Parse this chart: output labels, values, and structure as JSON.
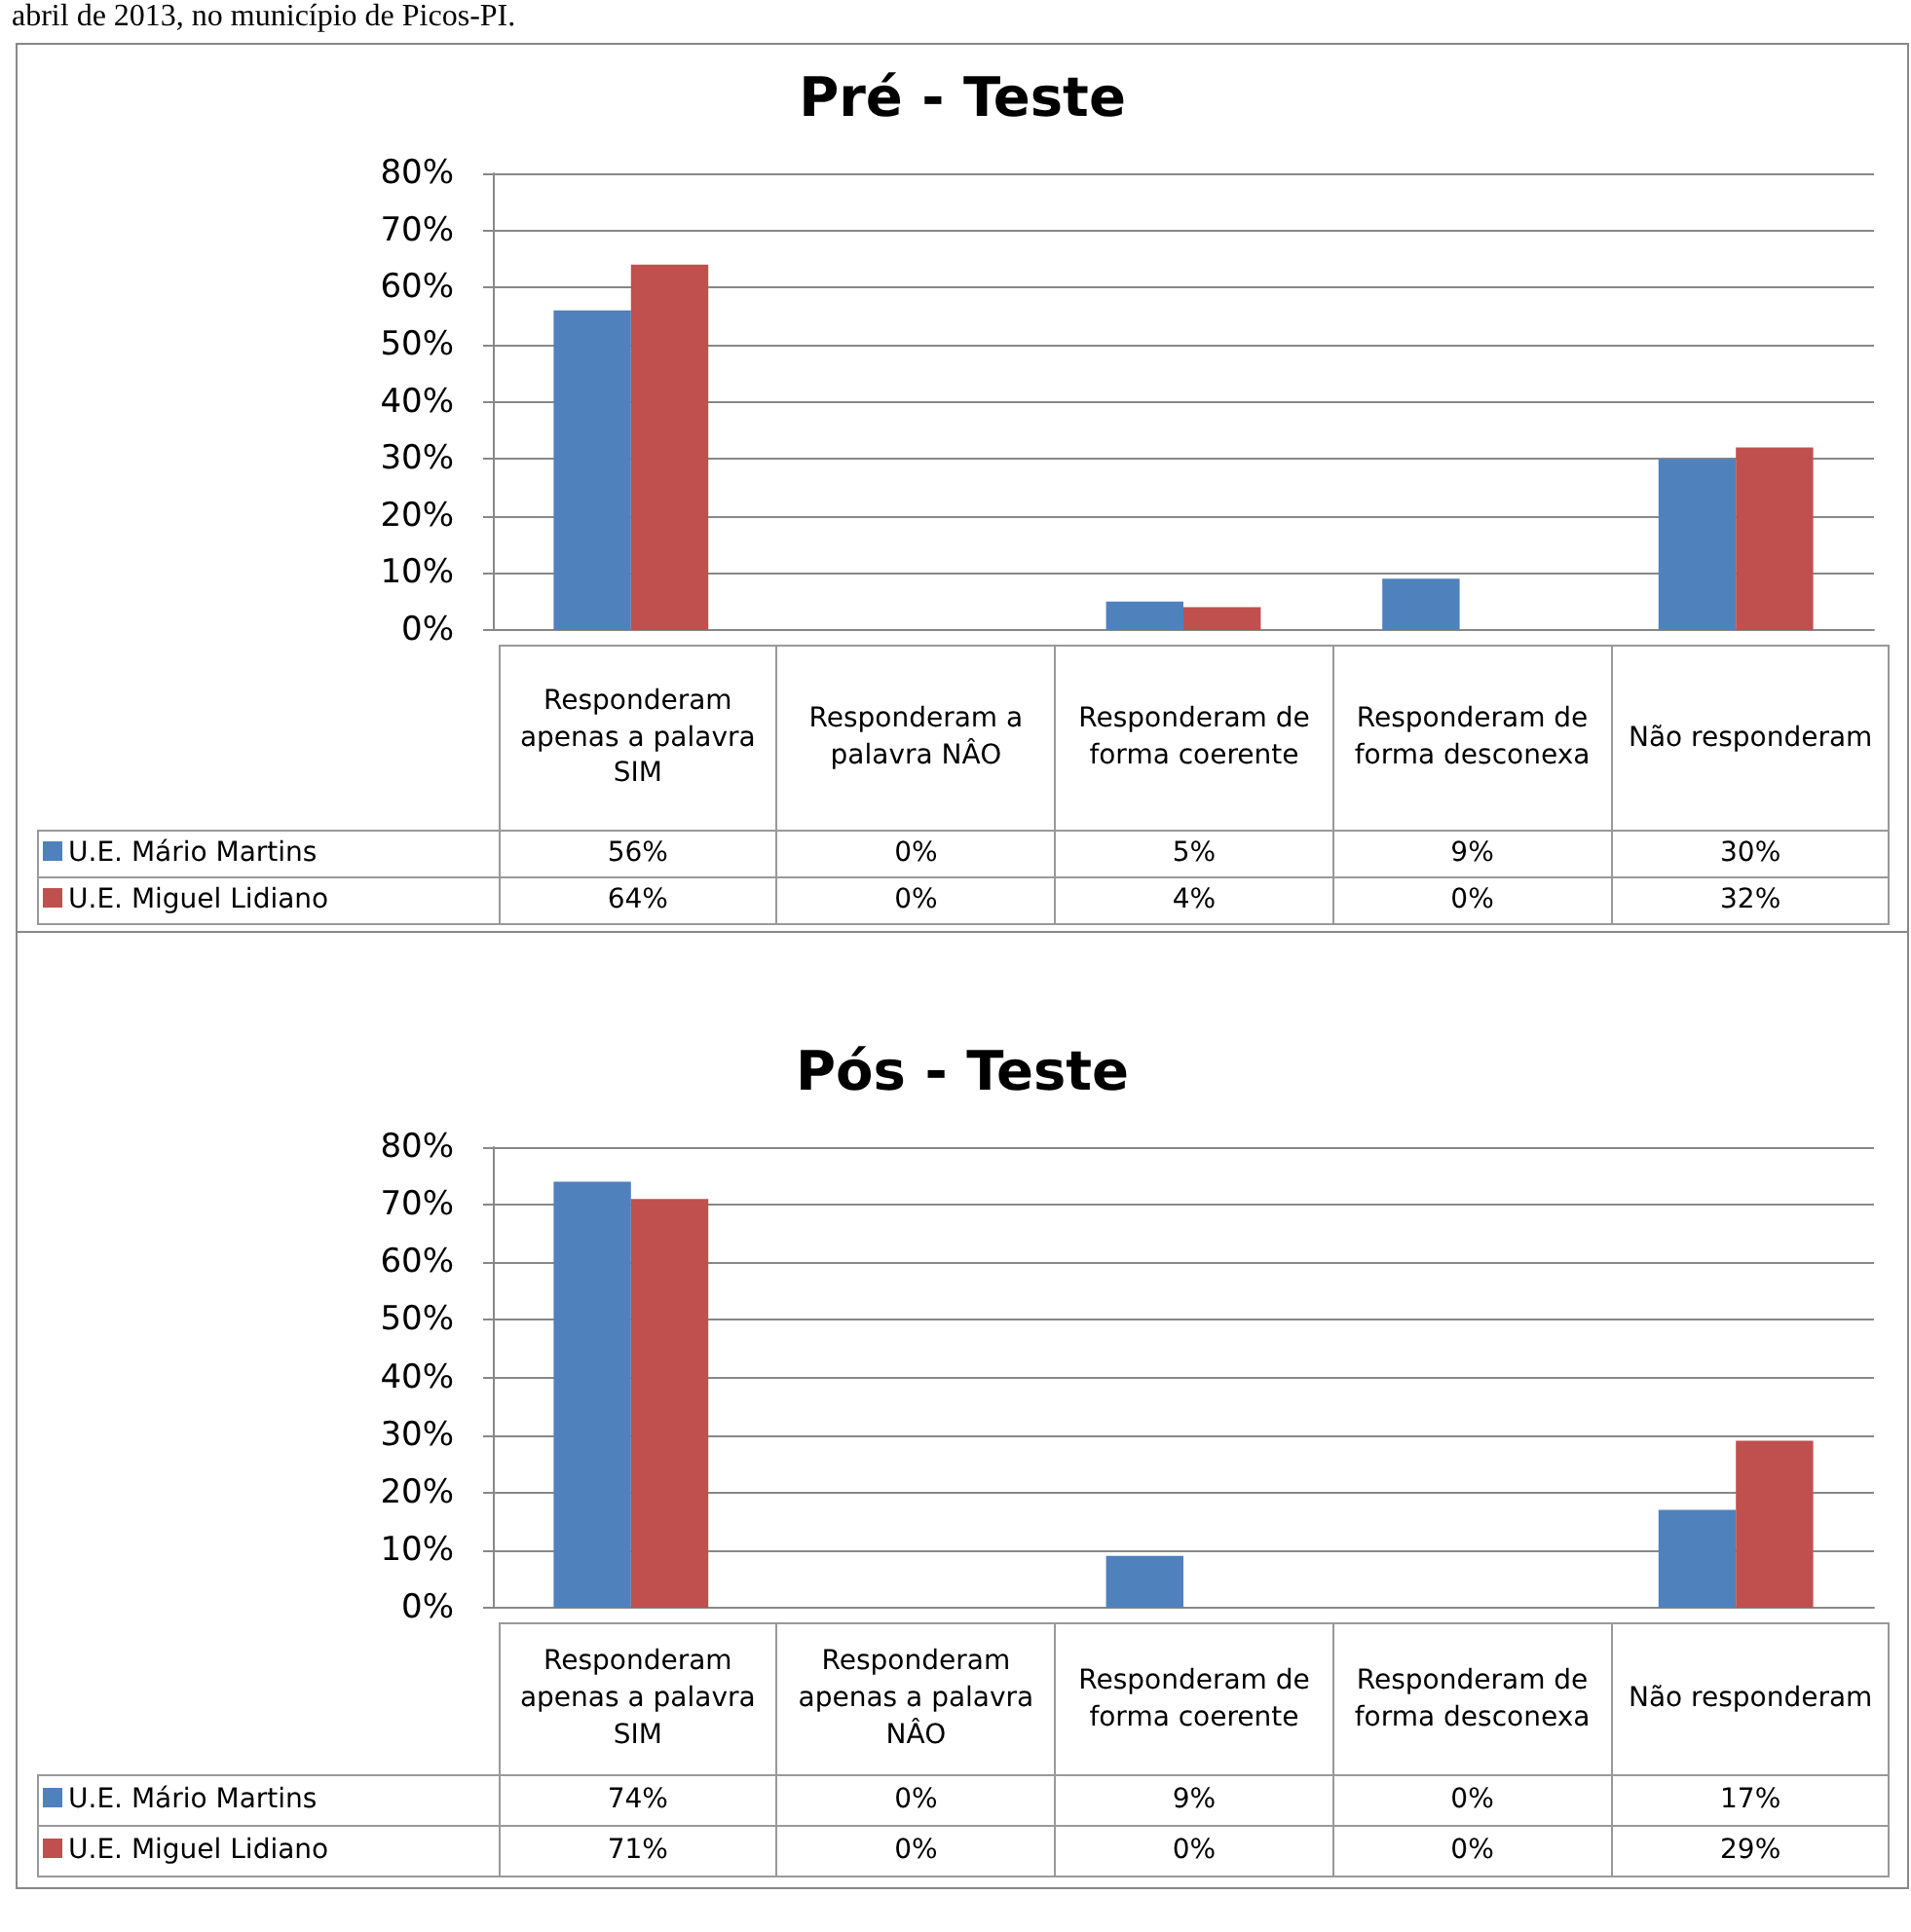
{
  "chart_data": [
    {
      "type": "bar",
      "title": "Pré - Teste",
      "annotations": [
        "abril de 2013, no município de Picos-PI."
      ],
      "categories": [
        "Responderam apenas a palavra SIM",
        "Responderam a palavra NÂO",
        "Responderam de forma coerente",
        "Responderam de forma desconexa",
        "Não responderam"
      ],
      "series": [
        {
          "name": "U.E. Mário Martins",
          "color": "#4f81bd",
          "values": [
            56,
            0,
            5,
            9,
            30
          ],
          "value_labels": [
            "56%",
            "0%",
            "5%",
            "9%",
            "30%"
          ]
        },
        {
          "name": "U.E. Miguel Lidiano",
          "color": "#c0504d",
          "values": [
            64,
            0,
            4,
            0,
            32
          ],
          "value_labels": [
            "64%",
            "0%",
            "4%",
            "0%",
            "32%"
          ]
        }
      ],
      "ylim": [
        0,
        80
      ],
      "yticks": [
        {
          "value": 0,
          "label": "0%"
        },
        {
          "value": 10,
          "label": "10%"
        },
        {
          "value": 20,
          "label": "20%"
        },
        {
          "value": 30,
          "label": "30%"
        },
        {
          "value": 40,
          "label": "40%"
        },
        {
          "value": 50,
          "label": "50%"
        },
        {
          "value": 60,
          "label": "60%"
        },
        {
          "value": 70,
          "label": "70%"
        },
        {
          "value": 80,
          "label": "80%"
        }
      ],
      "grid": "y",
      "legend": "bottom left"
    },
    {
      "type": "bar",
      "title": "Pós - Teste",
      "categories": [
        "Responderam apenas a palavra SIM",
        "Responderam apenas a palavra NÂO",
        "Responderam de forma coerente",
        "Responderam de forma desconexa",
        "Não responderam"
      ],
      "series": [
        {
          "name": "U.E. Mário Martins",
          "color": "#4f81bd",
          "values": [
            74,
            0,
            9,
            0,
            17
          ],
          "value_labels": [
            "74%",
            "0%",
            "9%",
            "0%",
            "17%"
          ]
        },
        {
          "name": "U.E. Miguel Lidiano",
          "color": "#c0504d",
          "values": [
            71,
            0,
            0,
            0,
            29
          ],
          "value_labels": [
            "71%",
            "0%",
            "0%",
            "0%",
            "29%"
          ]
        }
      ],
      "ylim": [
        0,
        80
      ],
      "yticks": [
        {
          "value": 0,
          "label": "0%"
        },
        {
          "value": 10,
          "label": "10%"
        },
        {
          "value": 20,
          "label": "20%"
        },
        {
          "value": 30,
          "label": "30%"
        },
        {
          "value": 40,
          "label": "40%"
        },
        {
          "value": 50,
          "label": "50%"
        },
        {
          "value": 60,
          "label": "60%"
        },
        {
          "value": 70,
          "label": "70%"
        },
        {
          "value": 80,
          "label": "80%"
        }
      ],
      "grid": "y",
      "legend": "bottom left"
    }
  ]
}
